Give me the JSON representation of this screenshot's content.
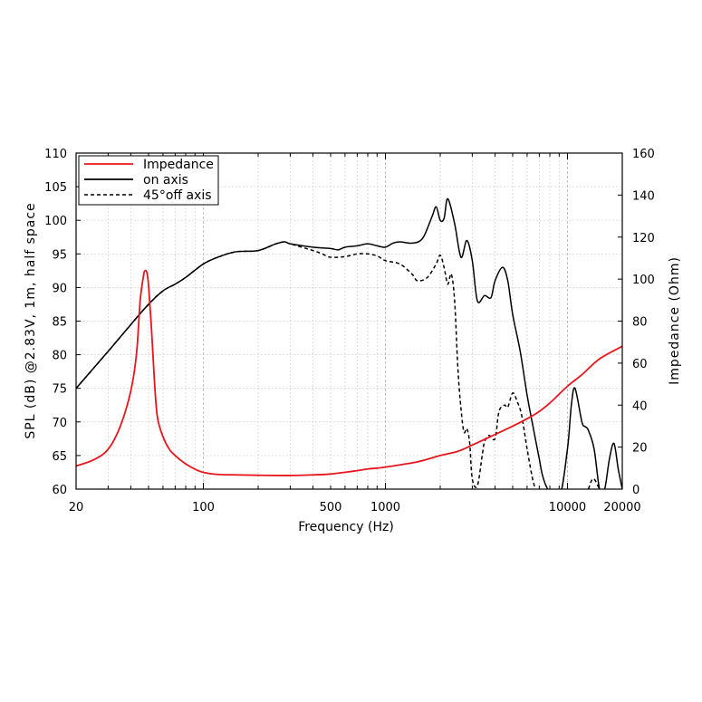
{
  "chart_data": {
    "type": "line",
    "title": "",
    "xlabel": "Frequency (Hz)",
    "ylabel": "SPL (dB) @2.83V, 1m, half space",
    "y2label": "Impedance (Ohm)",
    "x_scale": "log",
    "xlim": [
      20,
      20000
    ],
    "ylim": [
      60,
      110
    ],
    "y2lim": [
      0,
      160
    ],
    "x_ticks": [
      20,
      100,
      500,
      1000,
      10000,
      20000
    ],
    "x_tick_labels": [
      "20",
      "100",
      "500",
      "1000",
      "10000",
      "20000"
    ],
    "y_ticks": [
      60,
      65,
      70,
      75,
      80,
      85,
      90,
      95,
      100,
      105,
      110
    ],
    "y_tick_labels": [
      "60",
      "65",
      "70",
      "75",
      "80",
      "85",
      "90",
      "95",
      "100",
      "105",
      "110"
    ],
    "y2_ticks": [
      0,
      20,
      40,
      60,
      80,
      100,
      120,
      140,
      160
    ],
    "y2_tick_labels": [
      "0",
      "20",
      "40",
      "60",
      "80",
      "100",
      "120",
      "140",
      "160"
    ],
    "grid": true,
    "legend_position": "top-left",
    "series": [
      {
        "name": "Impedance",
        "axis": "right",
        "color": "#e8161c",
        "style": "solid",
        "x": [
          20,
          25,
          30,
          35,
          40,
          43,
          45,
          47,
          48,
          49,
          50,
          52,
          54,
          56,
          60,
          65,
          70,
          80,
          90,
          100,
          120,
          150,
          200,
          300,
          400,
          500,
          700,
          800,
          900,
          1000,
          1500,
          2000,
          2500,
          3000,
          4000,
          5000,
          6000,
          7000,
          8000,
          10000,
          12000,
          15000,
          20000
        ],
        "y": [
          11,
          14,
          19,
          30,
          47,
          65,
          90,
          102,
          104,
          103,
          97,
          75,
          50,
          34,
          25,
          19,
          16,
          12,
          9.5,
          8,
          7,
          6.8,
          6.6,
          6.5,
          6.8,
          7.2,
          8.8,
          9.6,
          10,
          10.5,
          13,
          16,
          18,
          21,
          26,
          30,
          33.5,
          37,
          41,
          49,
          54.5,
          62,
          68
        ]
      },
      {
        "name": "on axis",
        "axis": "left",
        "color": "#000000",
        "style": "solid",
        "x": [
          20,
          30,
          40,
          50,
          60,
          70,
          80,
          100,
          120,
          150,
          200,
          250,
          280,
          300,
          400,
          500,
          550,
          600,
          700,
          800,
          900,
          1000,
          1100,
          1200,
          1400,
          1600,
          1800,
          1900,
          2000,
          2100,
          2200,
          2400,
          2600,
          2800,
          3000,
          3200,
          3500,
          3800,
          4000,
          4400,
          4700,
          5000,
          5500,
          6000,
          6500,
          7000,
          7300,
          7800,
          9000,
          10000,
          10500,
          11000,
          12000,
          12500,
          13000,
          14000,
          15000,
          16000,
          17000,
          18000,
          19000,
          20000
        ],
        "y": [
          75,
          80.5,
          84.5,
          87.5,
          89.5,
          90.5,
          91.5,
          93.5,
          94.5,
          95.3,
          95.5,
          96.5,
          96.8,
          96.5,
          96,
          95.8,
          95.6,
          96,
          96.2,
          96.5,
          96.2,
          96,
          96.6,
          96.8,
          96.6,
          97.3,
          100.5,
          102,
          100,
          100.3,
          103.2,
          99.5,
          94.5,
          97,
          94,
          88,
          88.8,
          88.5,
          91,
          93,
          91,
          86,
          80.5,
          74,
          69,
          64.5,
          62,
          60,
          58.5,
          66,
          72.5,
          75,
          70,
          69.3,
          68.8,
          66,
          60,
          60,
          64.5,
          66.8,
          63,
          60
        ]
      },
      {
        "name": "45°off axis",
        "axis": "left",
        "color": "#000000",
        "style": "dashed",
        "x": [
          20,
          30,
          40,
          50,
          60,
          70,
          80,
          100,
          120,
          150,
          200,
          250,
          280,
          300,
          400,
          450,
          500,
          600,
          700,
          800,
          900,
          1000,
          1200,
          1400,
          1500,
          1700,
          1900,
          2000,
          2100,
          2200,
          2300,
          2400,
          2500,
          2600,
          2700,
          2800,
          2900,
          3000,
          3200,
          3400,
          3500,
          3700,
          4000,
          4200,
          4500,
          4700,
          5000,
          5300,
          5600,
          6000,
          6500,
          7000,
          8000,
          9000,
          10000,
          11000,
          12000,
          13000,
          14000,
          16000
        ],
        "y": [
          75,
          80.5,
          84.5,
          87.5,
          89.5,
          90.5,
          91.5,
          93.5,
          94.5,
          95.3,
          95.5,
          96.5,
          96.8,
          96.5,
          95.5,
          95,
          94.5,
          94.6,
          95,
          95,
          94.7,
          94,
          93.5,
          92,
          91,
          91.5,
          93.5,
          94.8,
          93,
          90.5,
          92,
          88,
          78,
          72,
          68.5,
          69,
          67,
          61.5,
          60.5,
          65,
          67,
          68,
          67.5,
          71.5,
          72.5,
          72.2,
          74.3,
          73,
          71,
          66,
          61,
          59,
          58,
          57.5,
          57,
          58,
          58.5,
          60,
          61.5,
          58
        ]
      }
    ]
  }
}
